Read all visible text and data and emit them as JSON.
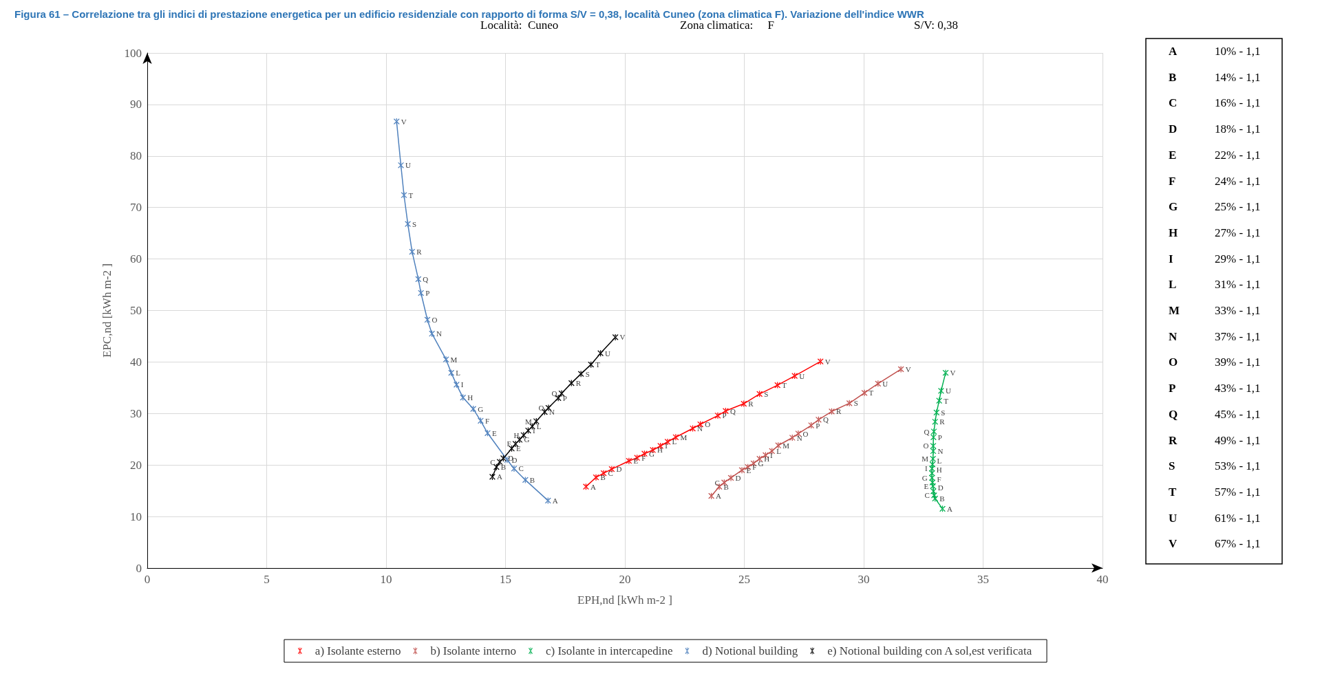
{
  "chart_data": {
    "type": "line",
    "title": "Figura 61 – Correlazione tra gli indici di prestazione energetica per un edificio residenziale con rapporto di forma S/V = 0,38, località Cuneo (zona climatica F). Variazione dell'indice WWR",
    "xlabel": "EPH,nd [kWh m-2 ]",
    "ylabel": "EPC,nd [kWh m-2 ]",
    "annotations": [
      "Località:  Cuneo",
      "Zona climatica:     F",
      "S/V: 0,38",
      "A 10% - 1,1",
      "B 14% - 1,1",
      "C 16% - 1,1",
      "D 18% - 1,1",
      "E 22% - 1,1",
      "F 24% - 1,1",
      "G 25% - 1,1",
      "H 27% - 1,1",
      "I 29% - 1,1",
      "L 31% - 1,1",
      "M 33% - 1,1",
      "N 37% - 1,1",
      "O 39% - 1,1",
      "P 43% - 1,1",
      "Q 45% - 1,1",
      "R 49% - 1,1",
      "S 53% - 1,1",
      "T 57% - 1,1",
      "U 61% - 1,1",
      "V 67% - 1,1"
    ],
    "xlim": [
      0,
      40
    ],
    "xticks": [
      0,
      5,
      10,
      15,
      20,
      25,
      30,
      35,
      40
    ],
    "ylim": [
      0,
      100
    ],
    "yticks": [
      0,
      10,
      20,
      30,
      40,
      50,
      60,
      70,
      80,
      90,
      100
    ],
    "grid": true,
    "legend": "bottom",
    "marker": "cross",
    "line_style": "solid",
    "series": [
      {
        "name": "a) Isolante esterno",
        "color": "#ff0000",
        "x": [
          18.37,
          18.79,
          19.11,
          19.45,
          20.17,
          20.51,
          20.82,
          21.17,
          21.49,
          21.79,
          22.13,
          22.84,
          23.16,
          23.89,
          24.22,
          24.98,
          25.64,
          26.39,
          27.11,
          28.19
        ],
        "values": [
          15.8,
          17.6,
          18.4,
          19.2,
          20.8,
          21.4,
          22.2,
          22.9,
          23.7,
          24.5,
          25.4,
          27.1,
          27.9,
          29.6,
          30.5,
          31.9,
          33.8,
          35.5,
          37.3,
          40.1
        ],
        "value_labels": [
          "A",
          "B",
          "C",
          "D",
          "E",
          "F",
          "G",
          "H",
          "I",
          "L",
          "M",
          "N",
          "O",
          "P",
          "Q",
          "R",
          "S",
          "T",
          "U",
          "V"
        ]
      },
      {
        "name": "b) Isolante interno",
        "color": "#c0504d",
        "x": [
          23.62,
          23.95,
          24.16,
          24.44,
          24.9,
          25.15,
          25.39,
          25.64,
          25.89,
          26.16,
          26.42,
          27.01,
          27.26,
          27.8,
          28.11,
          28.66,
          29.4,
          30.03,
          30.6,
          31.56
        ],
        "values": [
          14.0,
          15.8,
          16.6,
          17.5,
          19.0,
          19.6,
          20.3,
          21.2,
          21.9,
          22.7,
          23.8,
          25.3,
          26.1,
          27.7,
          28.8,
          30.4,
          32.0,
          34.0,
          35.8,
          38.6
        ],
        "value_labels": [
          "A",
          "B",
          "C",
          "D",
          "E",
          "F",
          "G",
          "H",
          "I",
          "L",
          "M",
          "N",
          "O",
          "P",
          "Q",
          "R",
          "S",
          "T",
          "U",
          "V"
        ]
      },
      {
        "name": "c) Isolante in intercapedine",
        "color": "#00b050",
        "x": [
          33.3,
          32.99,
          32.95,
          32.92,
          32.9,
          32.88,
          32.86,
          32.86,
          32.86,
          32.88,
          32.9,
          32.91,
          32.91,
          32.92,
          32.94,
          32.99,
          33.05,
          33.16,
          33.24,
          33.43
        ],
        "values": [
          11.5,
          13.5,
          14.1,
          14.9,
          15.9,
          16.6,
          17.5,
          18.4,
          19.3,
          20.1,
          21.2,
          22.7,
          23.7,
          25.4,
          26.5,
          28.4,
          30.2,
          32.5,
          34.4,
          37.9
        ],
        "value_labels": [
          "A",
          "B",
          "C",
          "D",
          "E",
          "F",
          "G",
          "H",
          "I",
          "L",
          "M",
          "N",
          "O",
          "P",
          "Q",
          "R",
          "S",
          "T",
          "U",
          "V"
        ]
      },
      {
        "name": "d) Notional building",
        "color": "#4f81bd",
        "x": [
          16.78,
          15.83,
          15.36,
          15.07,
          14.25,
          13.96,
          13.65,
          13.22,
          12.95,
          12.73,
          12.51,
          11.92,
          11.73,
          11.46,
          11.35,
          11.09,
          10.91,
          10.75,
          10.62,
          10.44
        ],
        "values": [
          13.1,
          17.1,
          19.3,
          21.0,
          26.2,
          28.6,
          30.9,
          33.1,
          35.6,
          37.9,
          40.5,
          45.5,
          48.2,
          53.4,
          56.1,
          61.4,
          66.8,
          72.4,
          78.2,
          86.7
        ],
        "value_labels": [
          "A",
          "B",
          "C",
          "D",
          "E",
          "F",
          "G",
          "H",
          "I",
          "L",
          "M",
          "N",
          "O",
          "P",
          "Q",
          "R",
          "S",
          "T",
          "U",
          "V"
        ]
      },
      {
        "name": "e) Notional building con A sol,est verificata",
        "color": "#000000",
        "x": [
          14.45,
          14.62,
          14.76,
          14.91,
          15.26,
          15.42,
          15.59,
          15.76,
          15.95,
          16.12,
          16.29,
          16.64,
          16.8,
          17.21,
          17.35,
          17.76,
          18.16,
          18.58,
          18.98,
          19.6
        ],
        "values": [
          17.7,
          19.6,
          20.6,
          21.3,
          23.2,
          24.1,
          24.9,
          25.8,
          26.7,
          27.5,
          28.5,
          30.3,
          31.1,
          33.0,
          33.9,
          35.9,
          37.7,
          39.5,
          41.7,
          44.8
        ],
        "value_labels": [
          "A",
          "B",
          "C",
          "D",
          "E",
          "F",
          "G",
          "H",
          "I",
          "L",
          "M",
          "N",
          "O",
          "P",
          "Q",
          "R",
          "S",
          "T",
          "U",
          "V"
        ]
      }
    ]
  }
}
